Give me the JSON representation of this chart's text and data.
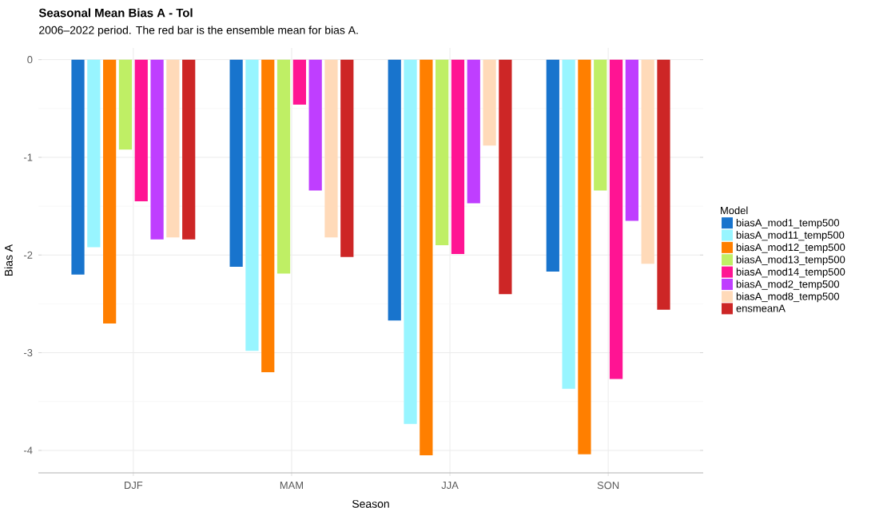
{
  "chart_data": {
    "type": "bar",
    "title": "Seasonal Mean Bias A - Tol",
    "subtitle": "2006–2022 period. The red bar is the ensemble mean for bias A.",
    "xlabel": "Season",
    "ylabel": "Bias A",
    "legend_title": "Model",
    "categories": [
      "DJF",
      "MAM",
      "JJA",
      "SON"
    ],
    "series": [
      {
        "name": "biasA_mod1_temp500",
        "color": "#1874cd",
        "values": [
          -2.2,
          -2.12,
          -2.67,
          -2.17
        ]
      },
      {
        "name": "biasA_mod11_temp500",
        "color": "#98f5ff",
        "values": [
          -1.92,
          -2.98,
          -3.73,
          -3.37
        ]
      },
      {
        "name": "biasA_mod12_temp500",
        "color": "#ff7f00",
        "values": [
          -2.7,
          -3.2,
          -4.05,
          -4.04
        ]
      },
      {
        "name": "biasA_mod13_temp500",
        "color": "#bfef65",
        "values": [
          -0.92,
          -2.19,
          -1.9,
          -1.34
        ]
      },
      {
        "name": "biasA_mod14_temp500",
        "color": "#ff1493",
        "values": [
          -1.45,
          -0.46,
          -1.99,
          -3.27
        ]
      },
      {
        "name": "biasA_mod2_temp500",
        "color": "#bf3eff",
        "values": [
          -1.84,
          -1.34,
          -1.47,
          -1.65
        ]
      },
      {
        "name": "biasA_mod8_temp500",
        "color": "#ffdab9",
        "values": [
          -1.82,
          -1.82,
          -0.88,
          -2.09
        ]
      },
      {
        "name": "ensmeanA",
        "color": "#cd2626",
        "values": [
          -1.84,
          -2.02,
          -2.4,
          -2.56
        ]
      }
    ],
    "ylim": [
      -4.23,
      0.12
    ],
    "yticks": [
      0,
      -1,
      -2,
      -3,
      -4
    ],
    "grid": true,
    "legend": "right"
  }
}
